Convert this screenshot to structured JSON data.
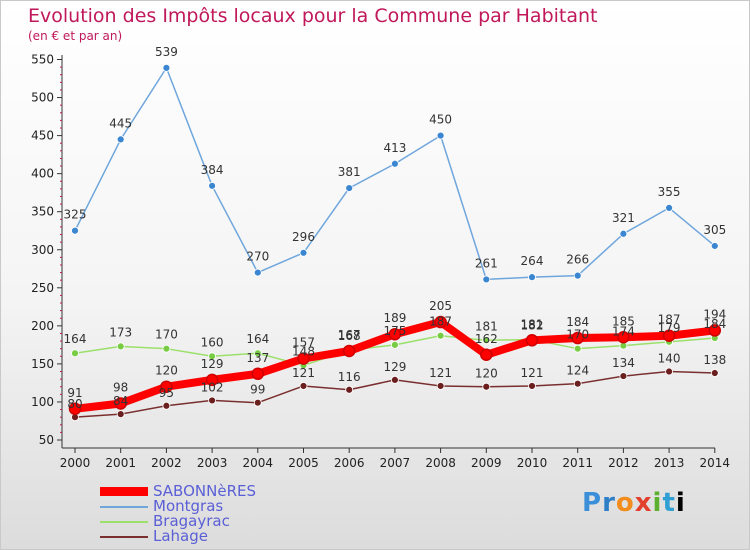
{
  "chart_data": {
    "type": "line",
    "title": "Evolution des Impôts locaux pour la Commune par Habitant",
    "subtitle": "(en € et par an)",
    "categories": [
      "2000",
      "2001",
      "2002",
      "2003",
      "2004",
      "2005",
      "2006",
      "2007",
      "2008",
      "2009",
      "2010",
      "2011",
      "2012",
      "2013",
      "2014"
    ],
    "ylim": [
      50,
      550
    ],
    "yticks": [
      50,
      100,
      150,
      200,
      250,
      300,
      350,
      400,
      450,
      500,
      550
    ],
    "grid": false,
    "legend_position": "bottom-left",
    "series": [
      {
        "name": "SABONNèRES",
        "color": "#ff0000",
        "marker": "#ff0000",
        "values": [
          91,
          98,
          120,
          129,
          137,
          157,
          167,
          189,
          205,
          162,
          181,
          184,
          185,
          187,
          194
        ]
      },
      {
        "name": "Montgras",
        "color": "#6fa6dc",
        "marker": "#3b86d1",
        "values": [
          325,
          445,
          539,
          384,
          270,
          296,
          381,
          413,
          450,
          261,
          264,
          266,
          321,
          355,
          305
        ]
      },
      {
        "name": "Bragayrac",
        "color": "#9be06a",
        "marker": "#77cc44",
        "values": [
          164,
          173,
          170,
          160,
          164,
          148,
          168,
          175,
          187,
          181,
          182,
          170,
          174,
          179,
          184
        ]
      },
      {
        "name": "Lahage",
        "color": "#7a2f2f",
        "marker": "#6b1e1e",
        "values": [
          80,
          84,
          95,
          102,
          99,
          121,
          116,
          129,
          121,
          120,
          121,
          124,
          134,
          140,
          138
        ]
      }
    ]
  },
  "logo": {
    "letters": [
      "P",
      "r",
      "o",
      "x",
      "i",
      "t",
      "i"
    ]
  }
}
